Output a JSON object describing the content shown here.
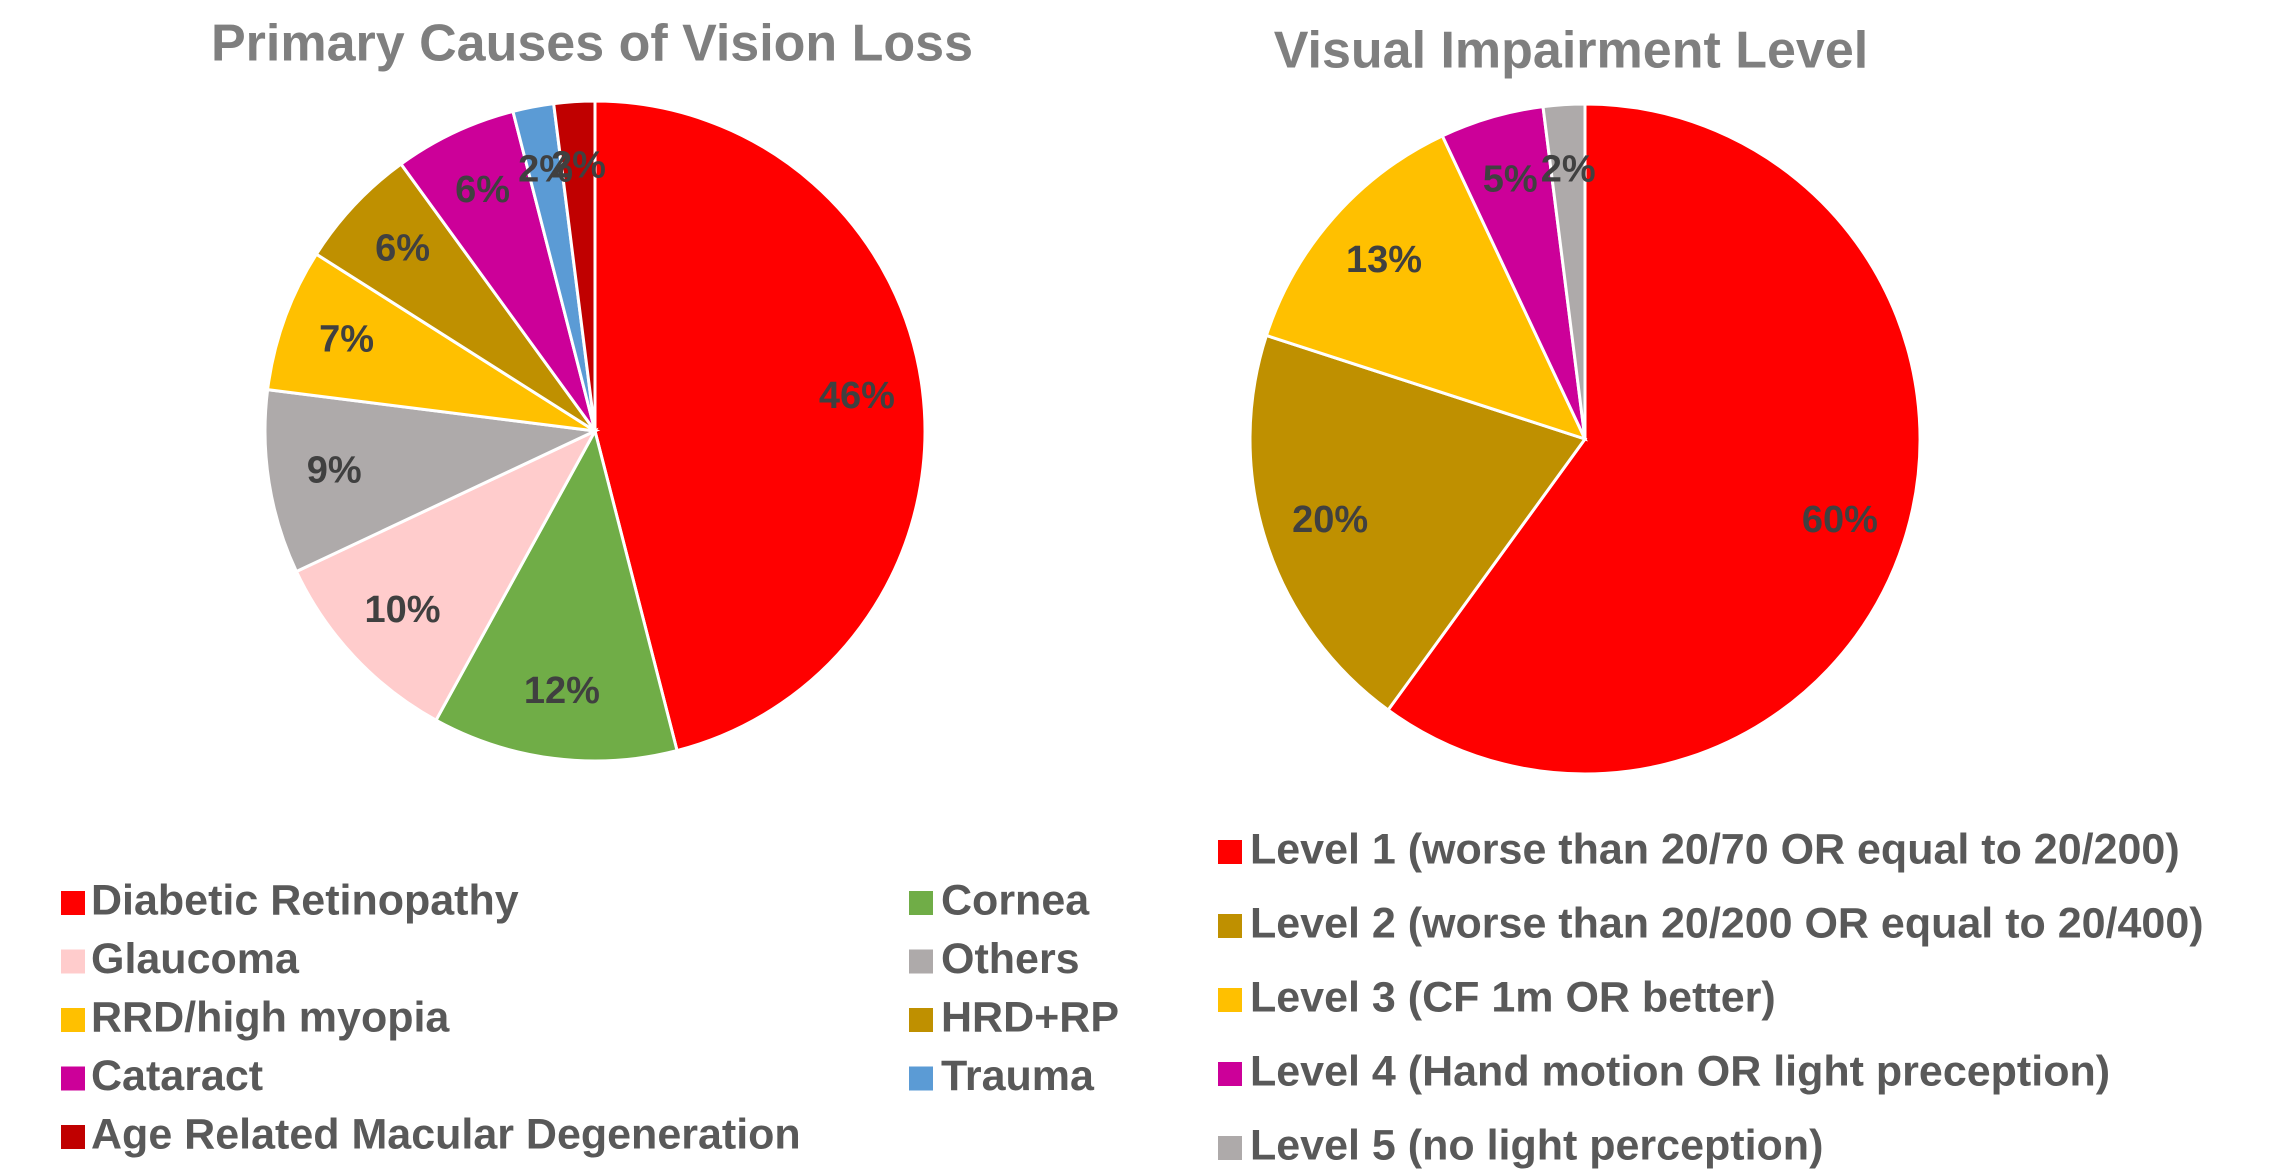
{
  "chart_data": [
    {
      "type": "pie",
      "title": "Primary Causes of Vision Loss",
      "categories": [
        "Diabetic Retinopathy",
        "Cornea",
        "Glaucoma",
        "Others",
        "RRD/high myopia",
        "HRD+RP",
        "Cataract",
        "Trauma",
        "Age Related Macular Degeneration"
      ],
      "values": [
        46,
        12,
        10,
        9,
        7,
        6,
        6,
        2,
        2
      ],
      "value_labels": [
        "46%",
        "12%",
        "10%",
        "9%",
        "7%",
        "6%",
        "6%",
        "2%",
        "2%"
      ],
      "colors": [
        "#ff0000",
        "#70ad47",
        "#ffcccc",
        "#aeaaaa",
        "#ffc000",
        "#bf9000",
        "#cc0099",
        "#5b9bd5",
        "#c00000"
      ]
    },
    {
      "type": "pie",
      "title": "Visual Impairment Level",
      "categories": [
        "Level 1 (worse than 20/70 OR equal to 20/200)",
        "Level 2 (worse than 20/200 OR equal to 20/400)",
        "Level 3 (CF 1m OR better)",
        "Level 4 (Hand motion OR light preception)",
        "Level 5 (no light perception)"
      ],
      "values": [
        60,
        20,
        13,
        5,
        2
      ],
      "value_labels": [
        "60%",
        "20%",
        "13%",
        "5%",
        "2%"
      ],
      "colors": [
        "#ff0000",
        "#bf9000",
        "#ffc000",
        "#cc0099",
        "#aeaaaa"
      ]
    }
  ]
}
